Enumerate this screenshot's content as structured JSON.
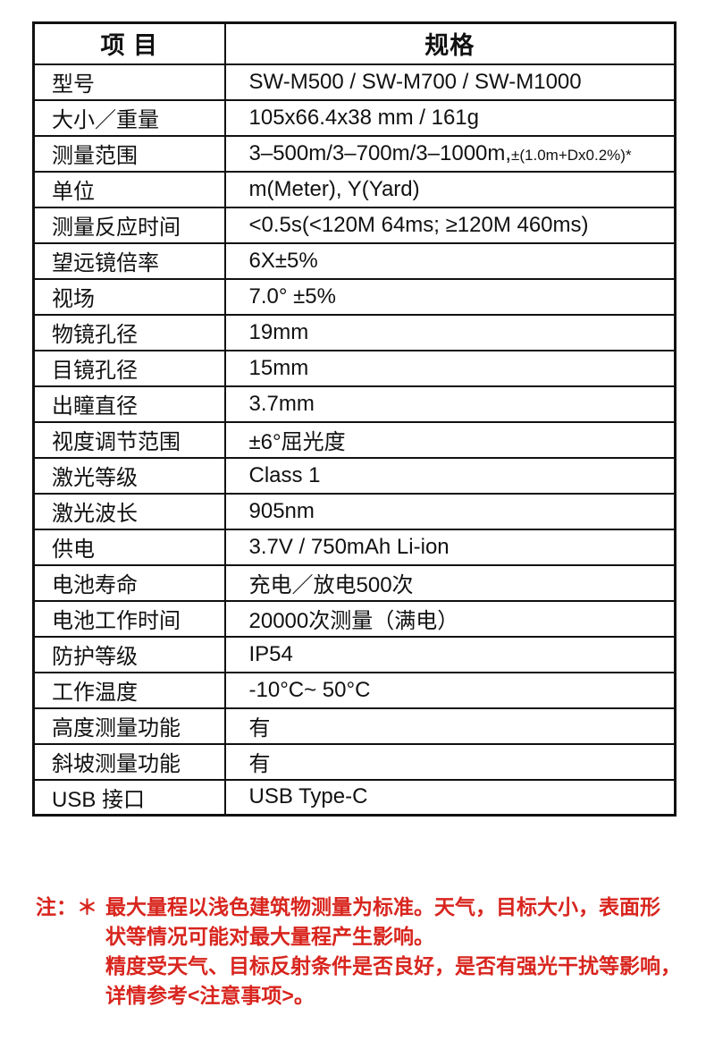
{
  "colors": {
    "text": "#111111",
    "border": "#111111",
    "note_red": "#d8251e"
  },
  "table": {
    "header": {
      "item": "项 目",
      "spec": "规格"
    },
    "rows": [
      {
        "label": "型号",
        "value": "SW-M500 / SW-M700 / SW-M1000"
      },
      {
        "label": "大小／重量",
        "value": "105x66.4x38 mm / 161g"
      },
      {
        "label": "测量范围",
        "value": "3–500m/3–700m/3–1000m,",
        "value_small": "±(1.0m+Dx0.2%)*"
      },
      {
        "label": "单位",
        "value": "m(Meter), Y(Yard)"
      },
      {
        "label": "测量反应时间",
        "value": "<0.5s(<120M 64ms; ≥120M 460ms)"
      },
      {
        "label": "望远镜倍率",
        "value": "6X±5%"
      },
      {
        "label": "视场",
        "value": "7.0° ±5%"
      },
      {
        "label": "物镜孔径",
        "value": "19mm"
      },
      {
        "label": "目镜孔径",
        "value": "15mm"
      },
      {
        "label": "出瞳直径",
        "value": "3.7mm"
      },
      {
        "label": "视度调节范围",
        "value": "±6°屈光度"
      },
      {
        "label": "激光等级",
        "value": "Class 1"
      },
      {
        "label": "激光波长",
        "value": "905nm"
      },
      {
        "label": "供电",
        "value": "3.7V / 750mAh Li-ion"
      },
      {
        "label": "电池寿命",
        "value": "充电／放电500次"
      },
      {
        "label": "电池工作时间",
        "value": "20000次测量（满电）"
      },
      {
        "label": "防护等级",
        "value": "IP54"
      },
      {
        "label": "工作温度",
        "value": "-10°C~ 50°C"
      },
      {
        "label": "高度测量功能",
        "value": "有"
      },
      {
        "label": "斜坡测量功能",
        "value": "有"
      },
      {
        "label": "USB 接口",
        "value": "USB Type-C"
      }
    ]
  },
  "note": {
    "prefix": "注：＊",
    "lines": [
      "最大量程以浅色建筑物测量为标准。天气，目标大小，表面形",
      "状等情况可能对最大量程产生影响。",
      "精度受天气、目标反射条件是否良好，是否有强光干扰等影响，",
      "详情参考<注意事项>。"
    ]
  }
}
